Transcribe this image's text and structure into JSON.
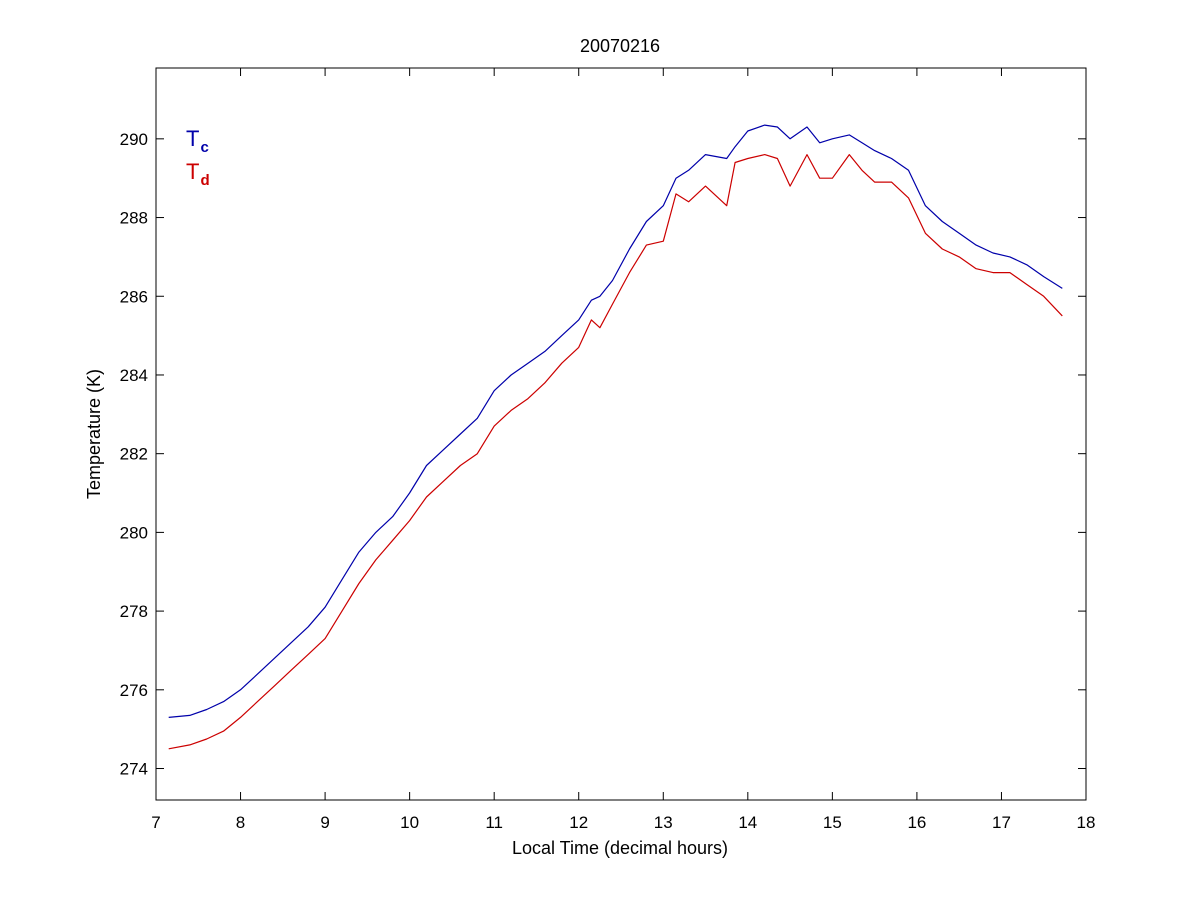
{
  "chart_data": {
    "type": "line",
    "title": "20070216",
    "xlabel": "Local Time (decimal hours)",
    "ylabel": "Temperature (K)",
    "xlim": [
      7,
      18
    ],
    "ylim": [
      273.2,
      291.8
    ],
    "xticks": [
      7,
      8,
      9,
      10,
      11,
      12,
      13,
      14,
      15,
      16,
      17,
      18
    ],
    "yticks": [
      274,
      276,
      278,
      280,
      282,
      284,
      286,
      288,
      290
    ],
    "grid": false,
    "legend": {
      "placement": "top-left",
      "entries": [
        {
          "base": "T",
          "sub": "c",
          "color": "#0000aa"
        },
        {
          "base": "T",
          "sub": "d",
          "color": "#cc0000"
        }
      ]
    },
    "series": [
      {
        "key": "Tc",
        "color": "#0000aa",
        "x": [
          7.15,
          7.4,
          7.6,
          7.8,
          8.0,
          8.2,
          8.4,
          8.6,
          8.8,
          9.0,
          9.2,
          9.4,
          9.6,
          9.8,
          10.0,
          10.2,
          10.4,
          10.6,
          10.8,
          11.0,
          11.2,
          11.4,
          11.6,
          11.8,
          12.0,
          12.15,
          12.25,
          12.4,
          12.6,
          12.8,
          13.0,
          13.15,
          13.3,
          13.5,
          13.75,
          13.85,
          14.0,
          14.2,
          14.35,
          14.5,
          14.7,
          14.85,
          15.0,
          15.2,
          15.35,
          15.5,
          15.7,
          15.9,
          16.1,
          16.3,
          16.5,
          16.7,
          16.9,
          17.1,
          17.3,
          17.5,
          17.72
        ],
        "y": [
          275.3,
          275.35,
          275.5,
          275.7,
          276.0,
          276.4,
          276.8,
          277.2,
          277.6,
          278.1,
          278.8,
          279.5,
          280.0,
          280.4,
          281.0,
          281.7,
          282.1,
          282.5,
          282.9,
          283.6,
          284.0,
          284.3,
          284.6,
          285.0,
          285.4,
          285.9,
          286.0,
          286.4,
          287.2,
          287.9,
          288.3,
          289.0,
          289.2,
          289.6,
          289.5,
          289.8,
          290.2,
          290.35,
          290.3,
          290.0,
          290.3,
          289.9,
          290.0,
          290.1,
          289.9,
          289.7,
          289.5,
          289.2,
          288.3,
          287.9,
          287.6,
          287.3,
          287.1,
          287.0,
          286.8,
          286.5,
          286.2
        ]
      },
      {
        "key": "Td",
        "color": "#cc0000",
        "x": [
          7.15,
          7.4,
          7.6,
          7.8,
          8.0,
          8.2,
          8.4,
          8.6,
          8.8,
          9.0,
          9.2,
          9.4,
          9.6,
          9.8,
          10.0,
          10.2,
          10.4,
          10.6,
          10.8,
          11.0,
          11.2,
          11.4,
          11.6,
          11.8,
          12.0,
          12.15,
          12.25,
          12.4,
          12.6,
          12.8,
          13.0,
          13.15,
          13.3,
          13.5,
          13.75,
          13.85,
          14.0,
          14.2,
          14.35,
          14.5,
          14.7,
          14.85,
          15.0,
          15.2,
          15.35,
          15.5,
          15.7,
          15.9,
          16.1,
          16.3,
          16.5,
          16.7,
          16.9,
          17.1,
          17.3,
          17.5,
          17.72
        ],
        "y": [
          274.5,
          274.6,
          274.75,
          274.95,
          275.3,
          275.7,
          276.1,
          276.5,
          276.9,
          277.3,
          278.0,
          278.7,
          279.3,
          279.8,
          280.3,
          280.9,
          281.3,
          281.7,
          282.0,
          282.7,
          283.1,
          283.4,
          283.8,
          284.3,
          284.7,
          285.4,
          285.2,
          285.8,
          286.6,
          287.3,
          287.4,
          288.6,
          288.4,
          288.8,
          288.3,
          289.4,
          289.5,
          289.6,
          289.5,
          288.8,
          289.6,
          289.0,
          289.0,
          289.6,
          289.2,
          288.9,
          288.9,
          288.5,
          287.6,
          287.2,
          287.0,
          286.7,
          286.6,
          286.6,
          286.3,
          286.0,
          285.5
        ]
      }
    ]
  }
}
